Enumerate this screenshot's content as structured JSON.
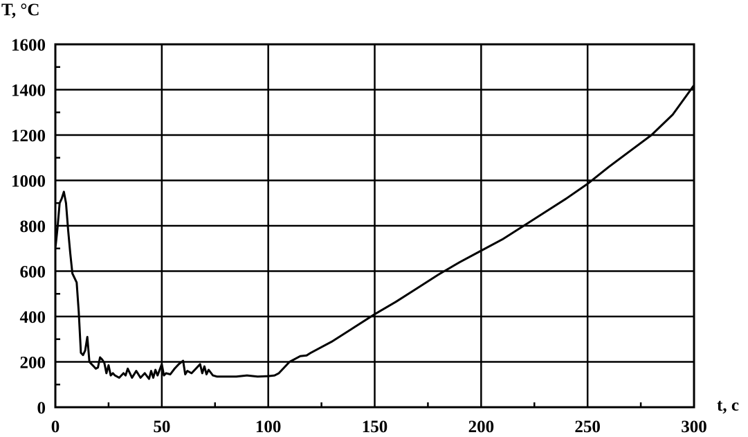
{
  "chart_data": {
    "type": "line",
    "title": "",
    "xlabel": "t, c",
    "ylabel": "T, °C",
    "xlim": [
      0,
      300
    ],
    "ylim": [
      0,
      1600
    ],
    "x_ticks": [
      0,
      50,
      100,
      150,
      200,
      250,
      300
    ],
    "y_ticks": [
      0,
      200,
      400,
      600,
      800,
      1000,
      1200,
      1400,
      1600
    ],
    "grid": true,
    "legend": "none",
    "series": [
      {
        "color": "#000000",
        "x": [
          0,
          1,
          2,
          3,
          4,
          5,
          6,
          7,
          8,
          9,
          10,
          11,
          12,
          13,
          14,
          15,
          16,
          17,
          18,
          19,
          20,
          21,
          22,
          23,
          24,
          25,
          26,
          27,
          28,
          30,
          32,
          33,
          34,
          36,
          38,
          40,
          42,
          44,
          45,
          46,
          47,
          48,
          50,
          51,
          52,
          54,
          56,
          58,
          60,
          61,
          62,
          64,
          66,
          68,
          69,
          70,
          71,
          72,
          74,
          76,
          80,
          85,
          90,
          95,
          100,
          103,
          105,
          108,
          110,
          113,
          115,
          118,
          120,
          125,
          130,
          140,
          150,
          160,
          170,
          180,
          190,
          200,
          210,
          220,
          230,
          240,
          250,
          260,
          270,
          280,
          290,
          300
        ],
        "y": [
          700,
          790,
          900,
          920,
          950,
          900,
          780,
          680,
          590,
          570,
          550,
          420,
          240,
          230,
          250,
          310,
          200,
          190,
          180,
          170,
          175,
          220,
          210,
          195,
          150,
          185,
          140,
          150,
          140,
          130,
          150,
          140,
          170,
          130,
          160,
          130,
          150,
          125,
          160,
          130,
          165,
          140,
          190,
          140,
          150,
          145,
          170,
          190,
          205,
          145,
          160,
          150,
          170,
          190,
          150,
          180,
          145,
          165,
          140,
          135,
          135,
          135,
          140,
          135,
          137,
          140,
          150,
          180,
          200,
          215,
          225,
          228,
          240,
          265,
          290,
          350,
          410,
          465,
          525,
          585,
          640,
          690,
          740,
          800,
          860,
          920,
          985,
          1060,
          1130,
          1200,
          1290,
          1420
        ]
      }
    ]
  }
}
